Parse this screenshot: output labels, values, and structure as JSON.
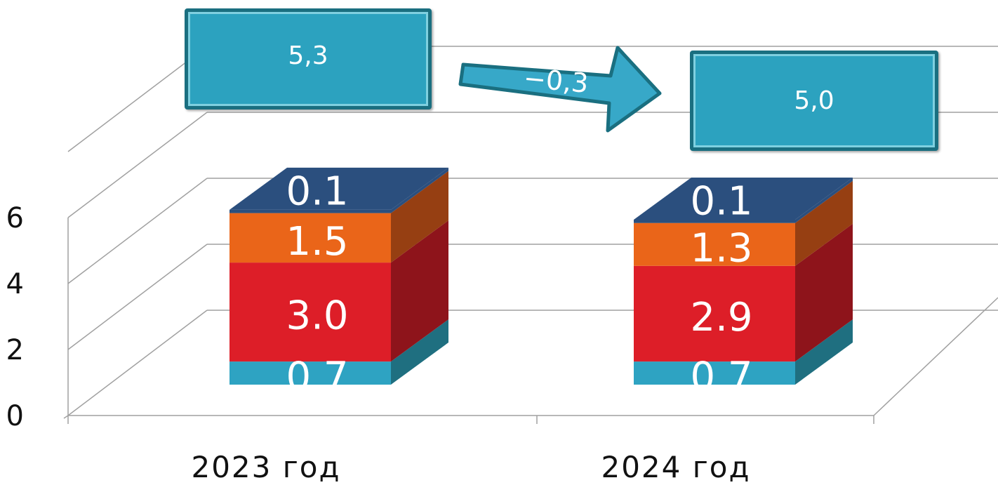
{
  "chart_data": {
    "type": "bar",
    "stacked": true,
    "three_d": true,
    "categories": [
      "2023 год",
      "2024 год"
    ],
    "series": [
      {
        "values": [
          0.7,
          0.7
        ],
        "value_labels": [
          "0.7",
          "0.7"
        ],
        "color": "#2ea3c2",
        "side_color": "#1f6f80"
      },
      {
        "values": [
          3.0,
          2.9
        ],
        "value_labels": [
          "3.0",
          "2.9"
        ],
        "color": "#dd1e28",
        "side_color": "#8e141b"
      },
      {
        "values": [
          1.5,
          1.3
        ],
        "value_labels": [
          "1.5",
          "1.3"
        ],
        "color": "#ea6519",
        "side_color": "#963f12"
      },
      {
        "values": [
          0.1,
          0.1
        ],
        "value_labels": [
          "0.1",
          "0.1"
        ],
        "color": "#2b4f7e",
        "side_color": "#2b4f7e"
      }
    ],
    "yticks": [
      "0",
      "2",
      "4",
      "6"
    ],
    "ylim": [
      0,
      6
    ],
    "grid": true,
    "legend": "none"
  },
  "callouts": {
    "total_2023": "5,3",
    "total_2024": "5,0",
    "change": "−0,3",
    "box_color": "#2ca2bf",
    "border_color": "#1a6f80"
  }
}
